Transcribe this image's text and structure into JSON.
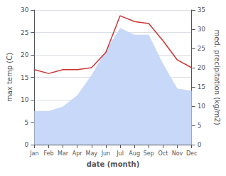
{
  "chart_data": {
    "type": "line",
    "xlabel": "date (month)",
    "ylabel": "max temp (C)",
    "y2label": "med. precipitation (kg/m2)",
    "categories": [
      "Jan",
      "Feb",
      "Mar",
      "Apr",
      "May",
      "Jun",
      "Jul",
      "Aug",
      "Sep",
      "Oct",
      "Nov",
      "Dec"
    ],
    "series": [
      {
        "type": "area",
        "color": "#c8d8f8",
        "values": [
          7.5,
          7.5,
          8.5,
          11.0,
          15.5,
          21.0,
          26.0,
          24.5,
          24.5,
          18.0,
          12.5,
          12.0
        ]
      },
      {
        "type": "line",
        "axis": "y2",
        "color": "#cc3333",
        "values": [
          19.5,
          18.5,
          19.5,
          19.5,
          20.0,
          24.0,
          33.5,
          32.0,
          31.5,
          27.0,
          22.0,
          20.0
        ]
      }
    ],
    "ylim": [
      0,
      30
    ],
    "yticks": [
      0,
      5,
      10,
      15,
      20,
      25,
      30
    ],
    "y2lim": [
      0,
      35
    ],
    "y2ticks": [
      0,
      5,
      10,
      15,
      20,
      25,
      30,
      35
    ],
    "grid": true
  }
}
